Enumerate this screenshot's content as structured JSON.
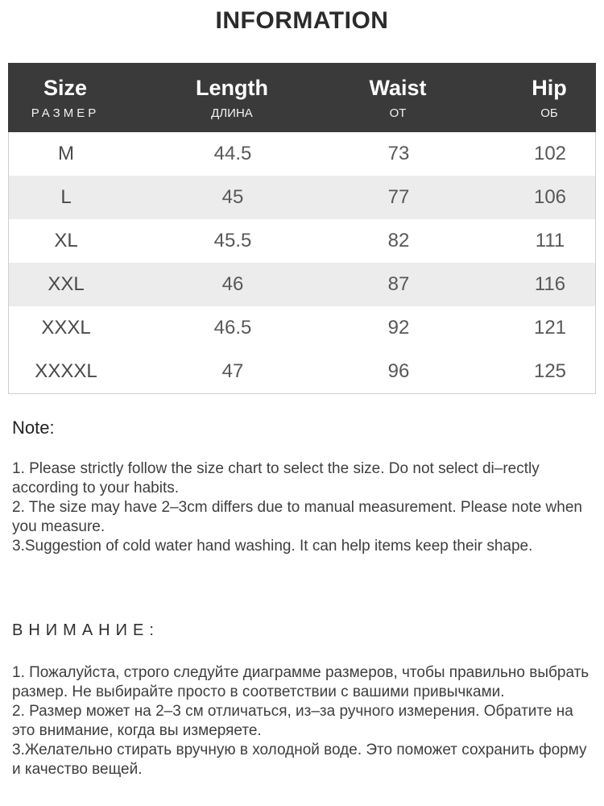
{
  "title": "INFORMATION",
  "table": {
    "headers": [
      {
        "en": "Size",
        "ru": "РАЗМЕР"
      },
      {
        "en": "Length",
        "ru": "ДЛИНА"
      },
      {
        "en": "Waist",
        "ru": "ОТ"
      },
      {
        "en": "Hip",
        "ru": "ОБ"
      }
    ],
    "rows": [
      {
        "size": "M",
        "length": "44.5",
        "waist": "73",
        "hip": "102"
      },
      {
        "size": "L",
        "length": "45",
        "waist": "77",
        "hip": "106"
      },
      {
        "size": "XL",
        "length": "45.5",
        "waist": "82",
        "hip": "111"
      },
      {
        "size": "XXL",
        "length": "46",
        "waist": "87",
        "hip": "116"
      },
      {
        "size": "XXXL",
        "length": "46.5",
        "waist": "92",
        "hip": "121"
      },
      {
        "size": "XXXXL",
        "length": "47",
        "waist": "96",
        "hip": "125"
      }
    ]
  },
  "note": {
    "heading": "Note:",
    "items": [
      "1. Please strictly follow the size chart  to select the size. Do not select di–rectly according to your habits.",
      "2. The size may have 2–3cm differs due to manual measurement. Please note when you measure.",
      "3.Suggestion of cold water hand washing. It can help items keep their shape."
    ]
  },
  "attention": {
    "heading": "ВНИМАНИЕ:",
    "items": [
      "1. Пожалуйста, строго следуйте диаграмме размеров, чтобы правильно выбрать размер. Не выбирайте просто в соответствии с вашими привычками.",
      "2. Размер может на 2–3 см отличаться, из–за ручного измерения. Обратите на это внимание, когда вы измеряете.",
      "3.Желательно стирать вручную в холодной воде. Это поможет сохранить форму и качество вещей."
    ]
  },
  "colors": {
    "header_bg": "#3a3a3a",
    "header_text": "#ffffff",
    "row_alt_bg": "#ececec",
    "body_text": "#3e3e3e",
    "table_border": "#cfcfcf"
  }
}
